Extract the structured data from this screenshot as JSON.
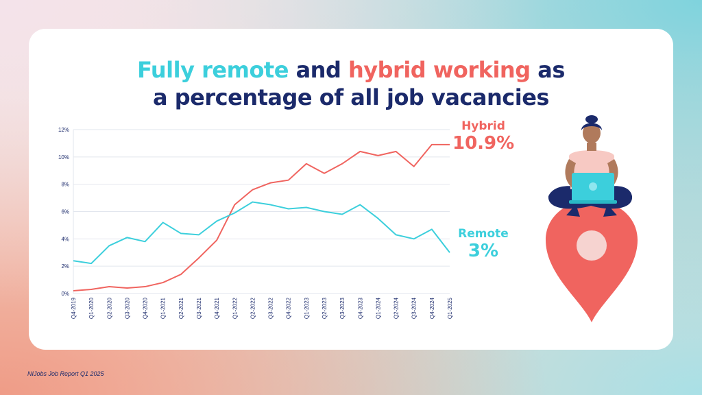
{
  "title": {
    "part1": "Fully remote",
    "part2": " and ",
    "part3": "hybrid working",
    "part4": " as",
    "line2": "a percentage of all job vacancies"
  },
  "colors": {
    "remote": "#3ccfdc",
    "hybrid": "#f0645f",
    "navy": "#1b2a6b"
  },
  "labels": {
    "hybrid_name": "Hybrid",
    "hybrid_value": "10.9%",
    "remote_name": "Remote",
    "remote_value": "3%"
  },
  "footer": "NIJobs Job Report Q1 2025",
  "illustration": "woman-with-laptop-on-location-pin",
  "chart_data": {
    "type": "line",
    "categories": [
      "Q4-2019",
      "Q1-2020",
      "Q2-2020",
      "Q3-2020",
      "Q4-2020",
      "Q1-2021",
      "Q2-2021",
      "Q3-2021",
      "Q4-2021",
      "Q1-2022",
      "Q2-2022",
      "Q3-2022",
      "Q4-2022",
      "Q1-2023",
      "Q2-2023",
      "Q3-2023",
      "Q4-2023",
      "Q1-2024",
      "Q2-2024",
      "Q3-2024",
      "Q4-2024",
      "Q1-2025"
    ],
    "series": [
      {
        "name": "Hybrid",
        "values": [
          0.2,
          0.3,
          0.5,
          0.4,
          0.5,
          0.8,
          1.4,
          2.6,
          3.9,
          6.5,
          7.6,
          8.1,
          8.3,
          9.5,
          8.8,
          9.5,
          10.4,
          10.1,
          10.4,
          9.3,
          10.9,
          10.9
        ]
      },
      {
        "name": "Remote",
        "values": [
          2.4,
          2.2,
          3.5,
          4.1,
          3.8,
          5.2,
          4.4,
          4.3,
          5.3,
          5.9,
          6.7,
          6.5,
          6.2,
          6.3,
          6.0,
          5.8,
          6.5,
          5.5,
          4.3,
          4.0,
          4.7,
          3.0
        ]
      }
    ],
    "yticks": [
      "0%",
      "2%",
      "4%",
      "6%",
      "8%",
      "10%",
      "12%"
    ],
    "ylim": [
      0,
      12
    ],
    "grid": true
  }
}
